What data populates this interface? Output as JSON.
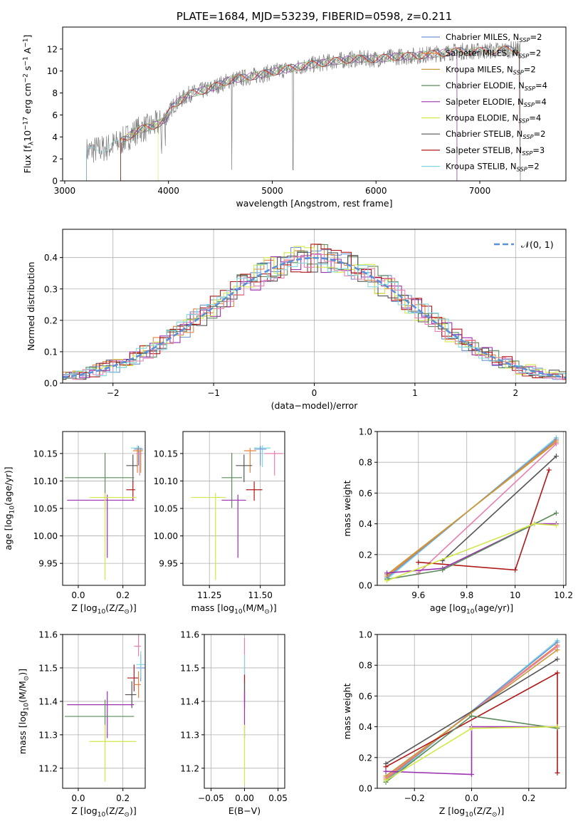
{
  "chart_data": [
    {
      "type": "line",
      "title": "PLATE=1684, MJD=53239, FIBERID=0598, z=0.211",
      "xlabel": "wavelength [Angstrom, rest frame]",
      "ylabel": "Flux [f$_\\lambda$10$^{-17}$ erg cm$^{-2}$ s$^{-1}$ A$^{-1}$]",
      "xlim": [
        2980,
        7830
      ],
      "ylim": [
        0,
        14
      ],
      "xticks": [
        3000,
        4000,
        5000,
        6000,
        7000
      ],
      "yticks": [
        0,
        2,
        4,
        6,
        8,
        10,
        12
      ],
      "legend_position": "right",
      "legend": [
        {
          "prefix": "Chabrier MILES, N",
          "sub": "SSP",
          "suffix": "=2",
          "color": "#6f95da"
        },
        {
          "prefix": "Salpeter MILES, N",
          "sub": "SSP",
          "suffix": "=2",
          "color": "#e8843c"
        },
        {
          "prefix": "Kroupa MILES, N",
          "sub": "SSP",
          "suffix": "=2",
          "color": "#c79c38"
        },
        {
          "prefix": "Chabrier ELODIE, N",
          "sub": "SSP",
          "suffix": "=4",
          "color": "#5b8a5b"
        },
        {
          "prefix": "Salpeter ELODIE, N",
          "sub": "SSP",
          "suffix": "=4",
          "color": "#9b30b0"
        },
        {
          "prefix": "Kroupa ELODIE, N",
          "sub": "SSP",
          "suffix": "=4",
          "color": "#d2e84a"
        },
        {
          "prefix": "Chabrier STELIB, N",
          "sub": "SSP",
          "suffix": "=2",
          "color": "#555555"
        },
        {
          "prefix": "Salpeter STELIB, N",
          "sub": "SSP",
          "suffix": "=3",
          "color": "#b01818"
        },
        {
          "prefix": "Kroupa STELIB, N",
          "sub": "SSP",
          "suffix": "=2",
          "color": "#80d8e0"
        }
      ],
      "data_color": "#808080",
      "spectrum_trend": {
        "wavelength": [
          3210,
          3400,
          3550,
          3700,
          3850,
          3950,
          4050,
          4200,
          4400,
          4600,
          4800,
          5000,
          5200,
          5400,
          5600,
          5800,
          6000,
          6200,
          6400,
          6600,
          6800,
          7000,
          7200,
          7390
        ],
        "flux": [
          2.7,
          3.0,
          3.6,
          4.6,
          5.0,
          5.4,
          6.9,
          7.9,
          8.4,
          9.2,
          9.5,
          9.9,
          10.3,
          10.6,
          10.9,
          11.1,
          11.1,
          11.3,
          11.4,
          11.6,
          11.8,
          11.8,
          11.9,
          12.0
        ]
      }
    },
    {
      "type": "bar",
      "xlabel": "(data-model)/error",
      "ylabel": "Normed distribution",
      "xlim": [
        -2.5,
        2.5
      ],
      "ylim": [
        0,
        0.49
      ],
      "xticks": [
        -2,
        -1,
        0,
        1,
        2
      ],
      "yticks": [
        0.0,
        0.1,
        0.2,
        0.3,
        0.4
      ],
      "grid": true,
      "legend_position": "top-right",
      "legend_label": "$\\mathcal{N}(0,1)$",
      "gaussian_color": "#5b8fd6",
      "bin_width": 0.1,
      "series": [
        {
          "color": "#6f95da",
          "values": [
            0.05,
            0.24,
            0.41,
            0.33,
            0.18
          ]
        },
        {
          "color": "#e8843c",
          "values": [
            0.05,
            0.23,
            0.42,
            0.32,
            0.17
          ]
        },
        {
          "color": "#5b8a5b",
          "values": [
            0.06,
            0.25,
            0.4,
            0.31,
            0.18
          ]
        },
        {
          "color": "#9b30b0",
          "values": [
            0.05,
            0.24,
            0.4,
            0.33,
            0.17
          ]
        },
        {
          "color": "#d2e84a",
          "values": [
            0.04,
            0.24,
            0.46,
            0.34,
            0.19
          ]
        },
        {
          "color": "#555555",
          "values": [
            0.06,
            0.25,
            0.41,
            0.31,
            0.17
          ]
        },
        {
          "color": "#b01818",
          "values": [
            0.05,
            0.26,
            0.4,
            0.34,
            0.17
          ]
        },
        {
          "color": "#e87fb0",
          "values": [
            0.06,
            0.23,
            0.43,
            0.32,
            0.18
          ]
        },
        {
          "color": "#80d8e0",
          "values": [
            0.05,
            0.24,
            0.4,
            0.34,
            0.18
          ]
        }
      ]
    },
    {
      "type": "scatter",
      "xlabel": "Z [log$_{10}$(Z/Z$_\\odot$)]",
      "ylabel": "age  [log$_{10}$(age/yr)]",
      "xlim": [
        -0.07,
        0.3
      ],
      "ylim": [
        9.91,
        10.19
      ],
      "xticks": [
        0.0,
        0.2
      ],
      "xticklabels": [
        "0.0",
        "0.2"
      ],
      "yticks": [
        9.95,
        10.0,
        10.05,
        10.1,
        10.15
      ],
      "grid": true,
      "points": [
        {
          "color": "#80d8e0",
          "x": 0.265,
          "xerr": [
            0.03,
            0.02
          ],
          "y": 10.16,
          "yerr": [
            0.035,
            0.005
          ]
        },
        {
          "color": "#6f95da",
          "x": 0.27,
          "xerr": [
            0.02,
            0.02
          ],
          "y": 10.158,
          "yerr": [
            0.03,
            0.006
          ]
        },
        {
          "color": "#e8843c",
          "x": 0.265,
          "xerr": [
            0.02,
            0.02
          ],
          "y": 10.155,
          "yerr": [
            0.04,
            0.005
          ]
        },
        {
          "color": "#c79c38",
          "x": 0.28,
          "xerr": [
            0.01,
            0.01
          ],
          "y": 10.155,
          "yerr": [
            0.04,
            0.005
          ]
        },
        {
          "color": "#e87fb0",
          "x": 0.275,
          "xerr": [
            0.015,
            0.01
          ],
          "y": 10.15,
          "yerr": [
            0.04,
            0.005
          ]
        },
        {
          "color": "#555555",
          "x": 0.245,
          "xerr": [
            0.03,
            0.02
          ],
          "y": 10.128,
          "yerr": [
            0.03,
            0.02
          ]
        },
        {
          "color": "#b01818",
          "x": 0.245,
          "xerr": [
            0.03,
            0.01
          ],
          "y": 10.084,
          "yerr": [
            0.02,
            0.015
          ]
        },
        {
          "color": "#5b8a5b",
          "x": 0.12,
          "xerr": [
            0.18,
            0.13
          ],
          "y": 10.106,
          "yerr": [
            0.055,
            0.045
          ]
        },
        {
          "color": "#9b30b0",
          "x": 0.13,
          "xerr": [
            0.18,
            0.12
          ],
          "y": 10.065,
          "yerr": [
            0.105,
            0.01
          ]
        },
        {
          "color": "#d2e84a",
          "x": 0.12,
          "xerr": [
            0.07,
            0.14
          ],
          "y": 10.07,
          "yerr": [
            0.15,
            0.008
          ]
        }
      ]
    },
    {
      "type": "scatter",
      "xlabel": "mass [log$_{10}$(M/M$_\\odot$)]",
      "xlim": [
        11.12,
        11.62
      ],
      "ylim": [
        9.91,
        10.19
      ],
      "xticks": [
        11.25,
        11.5
      ],
      "xticklabels": [
        "11.25",
        "11.50"
      ],
      "yticks": [
        9.95,
        10.0,
        10.05,
        10.1,
        10.15
      ],
      "grid": true,
      "points": [
        {
          "color": "#80d8e0",
          "x": 11.51,
          "xerr": [
            0.04,
            0.04
          ],
          "y": 10.16,
          "yerr": [
            0.035,
            0.005
          ]
        },
        {
          "color": "#6f95da",
          "x": 11.5,
          "xerr": [
            0.03,
            0.03
          ],
          "y": 10.158,
          "yerr": [
            0.03,
            0.006
          ]
        },
        {
          "color": "#e8843c",
          "x": 11.45,
          "xerr": [
            0.03,
            0.03
          ],
          "y": 10.155,
          "yerr": [
            0.04,
            0.005
          ]
        },
        {
          "color": "#e87fb0",
          "x": 11.57,
          "xerr": [
            0.05,
            0.04
          ],
          "y": 10.15,
          "yerr": [
            0.04,
            0.005
          ]
        },
        {
          "color": "#555555",
          "x": 11.42,
          "xerr": [
            0.04,
            0.04
          ],
          "y": 10.128,
          "yerr": [
            0.03,
            0.02
          ]
        },
        {
          "color": "#b01818",
          "x": 11.47,
          "xerr": [
            0.04,
            0.04
          ],
          "y": 10.084,
          "yerr": [
            0.02,
            0.015
          ]
        },
        {
          "color": "#5b8a5b",
          "x": 11.36,
          "xerr": [
            0.05,
            0.05
          ],
          "y": 10.106,
          "yerr": [
            0.055,
            0.045
          ]
        },
        {
          "color": "#9b30b0",
          "x": 11.39,
          "xerr": [
            0.08,
            0.04
          ],
          "y": 10.065,
          "yerr": [
            0.105,
            0.01
          ]
        },
        {
          "color": "#d2e84a",
          "x": 11.28,
          "xerr": [
            0.12,
            0.05
          ],
          "y": 10.07,
          "yerr": [
            0.15,
            0.008
          ]
        }
      ]
    },
    {
      "type": "line",
      "xlabel": "age  [log$_{10}$(age/yr)]",
      "ylabel": "mass weight",
      "xlim": [
        9.43,
        10.21
      ],
      "ylim": [
        0,
        1.0
      ],
      "xticks": [
        9.6,
        9.8,
        10.0,
        10.2
      ],
      "yticks": [
        0.0,
        0.2,
        0.4,
        0.6,
        0.8,
        1.0
      ],
      "grid": true,
      "series": [
        {
          "color": "#80d8e0",
          "x": [
            9.47,
            10.17
          ],
          "y": [
            0.04,
            0.96
          ]
        },
        {
          "color": "#6f95da",
          "x": [
            9.47,
            10.17
          ],
          "y": [
            0.05,
            0.95
          ]
        },
        {
          "color": "#e8843c",
          "x": [
            9.47,
            10.17
          ],
          "y": [
            0.06,
            0.94
          ]
        },
        {
          "color": "#c79c38",
          "x": [
            9.47,
            10.17
          ],
          "y": [
            0.07,
            0.93
          ]
        },
        {
          "color": "#e87fb0",
          "x": [
            9.6,
            10.17
          ],
          "y": [
            0.08,
            0.92
          ]
        },
        {
          "color": "#555555",
          "x": [
            9.7,
            10.17
          ],
          "y": [
            0.16,
            0.84
          ]
        },
        {
          "color": "#b01818",
          "x": [
            9.6,
            10.0,
            10.14
          ],
          "y": [
            0.15,
            0.1,
            0.75
          ]
        },
        {
          "color": "#9b30b0",
          "x": [
            9.47,
            9.7,
            10.08,
            10.17
          ],
          "y": [
            0.08,
            0.11,
            0.4,
            0.4
          ]
        },
        {
          "color": "#5b8a5b",
          "x": [
            9.47,
            9.7,
            10.17
          ],
          "y": [
            0.04,
            0.1,
            0.47
          ]
        },
        {
          "color": "#d2e84a",
          "x": [
            9.47,
            10.08,
            10.17
          ],
          "y": [
            0.03,
            0.4,
            0.39
          ]
        }
      ]
    },
    {
      "type": "scatter",
      "xlabel": "Z [log$_{10}$(Z/Z$_\\odot$)]",
      "ylabel": "mass [log$_{10}$(M/M$_\\odot$)]",
      "xlim": [
        -0.07,
        0.3
      ],
      "ylim": [
        11.14,
        11.6
      ],
      "xticks": [
        0.0,
        0.2
      ],
      "xticklabels": [
        "0.0",
        "0.2"
      ],
      "yticks": [
        11.2,
        11.3,
        11.4,
        11.5,
        11.6
      ],
      "grid": true,
      "points": [
        {
          "color": "#e87fb0",
          "x": 0.27,
          "xerr": [
            0.02,
            0.01
          ],
          "y": 11.565,
          "yerr": [
            0.03,
            0.04
          ]
        },
        {
          "color": "#6f95da",
          "x": 0.28,
          "xerr": [
            0.02,
            0.02
          ],
          "y": 11.5,
          "yerr": [
            0.04,
            0.04
          ]
        },
        {
          "color": "#80d8e0",
          "x": 0.28,
          "xerr": [
            0.02,
            0.02
          ],
          "y": 11.51,
          "yerr": [
            0.04,
            0.04
          ]
        },
        {
          "color": "#b01818",
          "x": 0.25,
          "xerr": [
            0.03,
            0.02
          ],
          "y": 11.47,
          "yerr": [
            0.04,
            0.04
          ]
        },
        {
          "color": "#e8843c",
          "x": 0.27,
          "xerr": [
            0.02,
            0.01
          ],
          "y": 11.45,
          "yerr": [
            0.04,
            0.04
          ]
        },
        {
          "color": "#555555",
          "x": 0.24,
          "xerr": [
            0.03,
            0.02
          ],
          "y": 11.42,
          "yerr": [
            0.04,
            0.04
          ]
        },
        {
          "color": "#9b30b0",
          "x": 0.13,
          "xerr": [
            0.18,
            0.12
          ],
          "y": 11.39,
          "yerr": [
            0.1,
            0.04
          ]
        },
        {
          "color": "#5b8a5b",
          "x": 0.12,
          "xerr": [
            0.18,
            0.13
          ],
          "y": 11.355,
          "yerr": [
            0.08,
            0.05
          ]
        },
        {
          "color": "#d2e84a",
          "x": 0.12,
          "xerr": [
            0.07,
            0.14
          ],
          "y": 11.28,
          "yerr": [
            0.12,
            0.05
          ]
        }
      ]
    },
    {
      "type": "scatter",
      "xlabel": "E(B-V)",
      "xlim": [
        -0.06,
        0.06
      ],
      "ylim": [
        11.14,
        11.6
      ],
      "xticks": [
        -0.05,
        0.0,
        0.05
      ],
      "xticklabels": [
        "−0.05",
        "0.00",
        "0.05"
      ],
      "yticks": [
        11.2,
        11.3,
        11.4,
        11.5,
        11.6
      ],
      "grid": true,
      "points": [
        {
          "color": "#e87fb0",
          "x": 0.0,
          "y": 11.5,
          "yerr": [
            0.05,
            0.09
          ]
        },
        {
          "color": "#80d8e0",
          "x": 0.0,
          "y": 11.5,
          "yerr": [
            0.04,
            0.04
          ]
        },
        {
          "color": "#b01818",
          "x": 0.0,
          "y": 11.44,
          "yerr": [
            0.04,
            0.04
          ]
        },
        {
          "color": "#555555",
          "x": 0.0,
          "y": 11.42,
          "yerr": [
            0.04,
            0.04
          ]
        },
        {
          "color": "#9b30b0",
          "x": 0.0,
          "y": 11.39,
          "yerr": [
            0.1,
            0.04
          ]
        },
        {
          "color": "#d2e84a",
          "x": 0.0,
          "y": 11.28,
          "yerr": [
            0.13,
            0.05
          ]
        }
      ]
    },
    {
      "type": "line",
      "xlabel": "Z [log$_{10}$(Z/Z$_\\odot$)]",
      "ylabel": "mass weight",
      "xlim": [
        -0.33,
        0.33
      ],
      "ylim": [
        0,
        1.0
      ],
      "xticks": [
        -0.2,
        0.0,
        0.2
      ],
      "xticklabels": [
        "−0.2",
        "0.0",
        "0.2"
      ],
      "yticks": [
        0.0,
        0.2,
        0.4,
        0.6,
        0.8,
        1.0
      ],
      "grid": true,
      "series": [
        {
          "color": "#80d8e0",
          "x": [
            -0.3,
            0.3
          ],
          "y": [
            0.04,
            0.96
          ]
        },
        {
          "color": "#6f95da",
          "x": [
            -0.3,
            0.3
          ],
          "y": [
            0.05,
            0.95
          ]
        },
        {
          "color": "#e8843c",
          "x": [
            -0.3,
            0.3
          ],
          "y": [
            0.06,
            0.93
          ]
        },
        {
          "color": "#e87fb0",
          "x": [
            -0.3,
            0.3
          ],
          "y": [
            0.07,
            0.92
          ]
        },
        {
          "color": "#c79c38",
          "x": [
            -0.3,
            0.3
          ],
          "y": [
            0.08,
            0.9
          ]
        },
        {
          "color": "#555555",
          "x": [
            -0.3,
            0.3
          ],
          "y": [
            0.16,
            0.84
          ]
        },
        {
          "color": "#b01818",
          "x": [
            -0.3,
            0.3,
            0.3
          ],
          "y": [
            0.14,
            0.75,
            0.1
          ]
        },
        {
          "color": "#9b30b0",
          "x": [
            -0.3,
            0.0,
            0.0,
            0.3
          ],
          "y": [
            0.11,
            0.09,
            0.4,
            0.4
          ]
        },
        {
          "color": "#5b8a5b",
          "x": [
            -0.3,
            0.0,
            0.3
          ],
          "y": [
            0.04,
            0.47,
            0.39
          ]
        },
        {
          "color": "#d2e84a",
          "x": [
            -0.3,
            0.0,
            0.3
          ],
          "y": [
            0.05,
            0.39,
            0.4
          ]
        }
      ]
    }
  ]
}
